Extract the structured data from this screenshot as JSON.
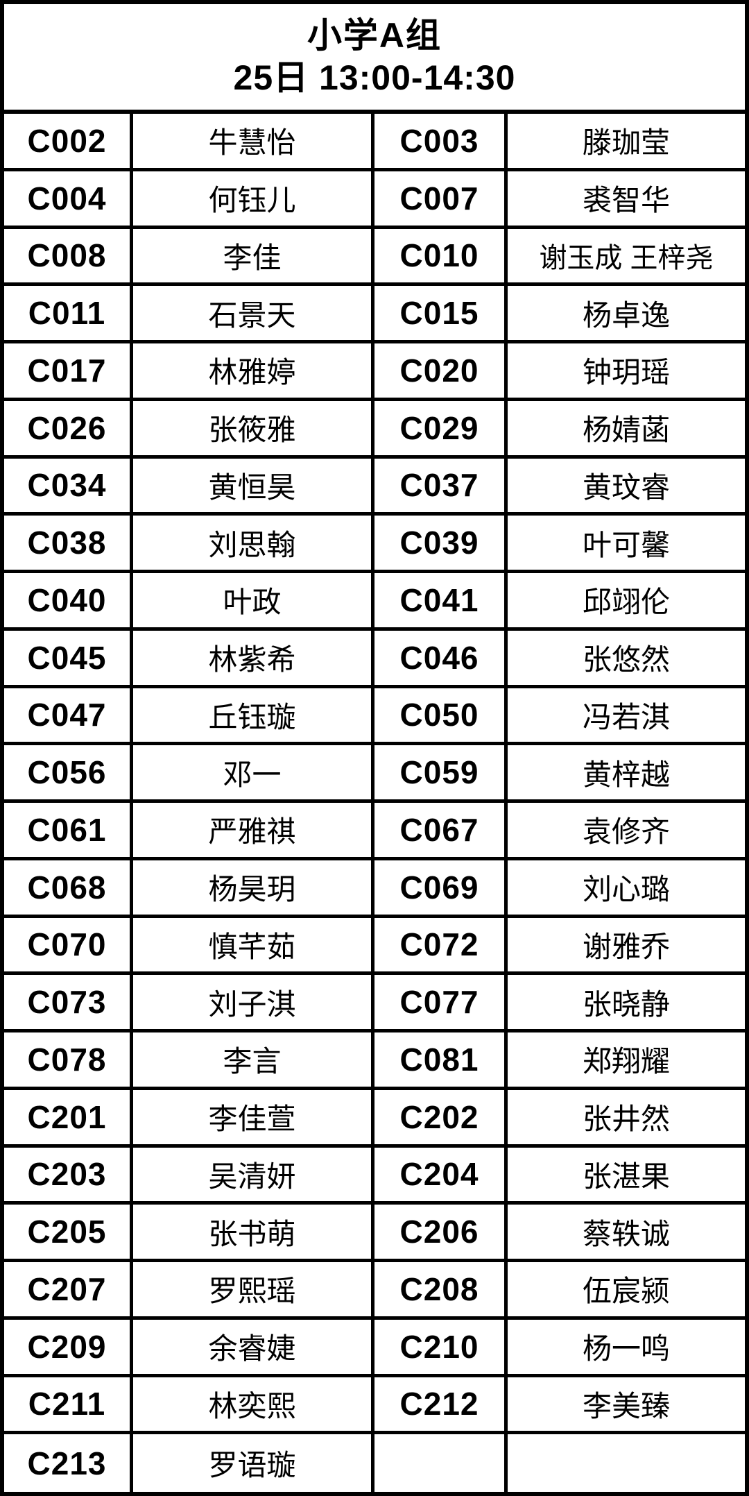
{
  "header": {
    "title": "小学A组",
    "schedule": "25日 13:00-14:30"
  },
  "colors": {
    "border": "#000000",
    "background": "#ffffff",
    "text": "#000000"
  },
  "table": {
    "columns": [
      "code",
      "name",
      "code",
      "name"
    ],
    "rows": [
      [
        "C002",
        "牛慧怡",
        "C003",
        "滕珈莹"
      ],
      [
        "C004",
        "何钰儿",
        "C007",
        "裘智华"
      ],
      [
        "C008",
        "李佳",
        "C010",
        "谢玉成 王梓尧"
      ],
      [
        "C011",
        "石景天",
        "C015",
        "杨卓逸"
      ],
      [
        "C017",
        "林雅婷",
        "C020",
        "钟玥瑶"
      ],
      [
        "C026",
        "张筱雅",
        "C029",
        "杨婧菡"
      ],
      [
        "C034",
        "黄恒昊",
        "C037",
        "黄玟睿"
      ],
      [
        "C038",
        "刘思翰",
        "C039",
        "叶可馨"
      ],
      [
        "C040",
        "叶政",
        "C041",
        "邱翊伦"
      ],
      [
        "C045",
        "林紫希",
        "C046",
        "张悠然"
      ],
      [
        "C047",
        "丘钰璇",
        "C050",
        "冯若淇"
      ],
      [
        "C056",
        "邓一",
        "C059",
        "黄梓越"
      ],
      [
        "C061",
        "严雅祺",
        "C067",
        "袁修齐"
      ],
      [
        "C068",
        "杨昊玥",
        "C069",
        "刘心璐"
      ],
      [
        "C070",
        "慎芊茹",
        "C072",
        "谢雅乔"
      ],
      [
        "C073",
        "刘子淇",
        "C077",
        "张晓静"
      ],
      [
        "C078",
        "李言",
        "C081",
        "郑翔耀"
      ],
      [
        "C201",
        "李佳萱",
        "C202",
        "张井然"
      ],
      [
        "C203",
        "吴清妍",
        "C204",
        "张湛果"
      ],
      [
        "C205",
        "张书萌",
        "C206",
        "蔡轶诚"
      ],
      [
        "C207",
        "罗熙瑶",
        "C208",
        "伍宸颍"
      ],
      [
        "C209",
        "余睿婕",
        "C210",
        "杨一鸣"
      ],
      [
        "C211",
        "林奕熙",
        "C212",
        "李美臻"
      ],
      [
        "C213",
        "罗语璇",
        "",
        ""
      ]
    ]
  }
}
